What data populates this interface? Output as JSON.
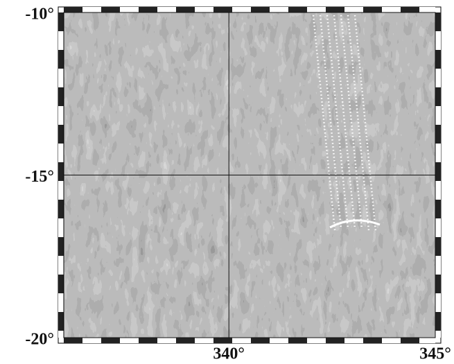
{
  "chart_data": {
    "type": "map",
    "xlim": [
      336,
      345
    ],
    "ylim": [
      -20,
      -10
    ],
    "xticks": [
      {
        "value": 340,
        "label": "340°"
      },
      {
        "value": 345,
        "label": "345°"
      }
    ],
    "yticks": [
      {
        "value": -10,
        "label": "-10°"
      },
      {
        "value": -15,
        "label": "-15°"
      },
      {
        "value": -20,
        "label": "-20°"
      }
    ],
    "grid": true
  }
}
